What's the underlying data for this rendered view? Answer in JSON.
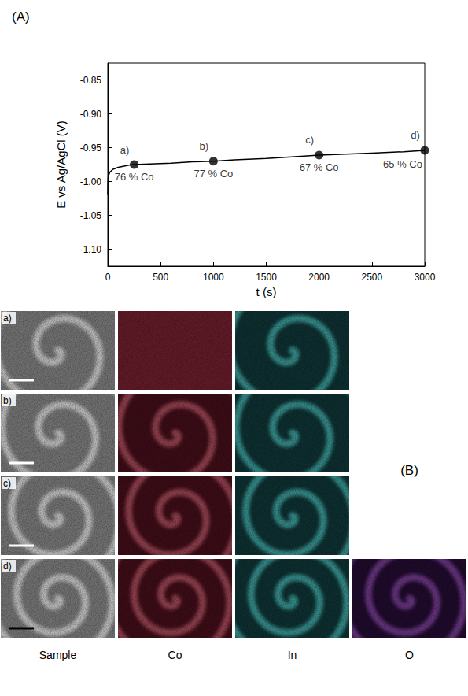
{
  "chart_data": {
    "type": "line",
    "panel": "(A)",
    "x_label": "t (s)",
    "y_label": "E vs Ag/AgCl (V)",
    "x": [
      0,
      2,
      5,
      10,
      20,
      50,
      100,
      200,
      250,
      400,
      600,
      800,
      1000,
      1200,
      1500,
      1800,
      2000,
      2200,
      2500,
      2800,
      3000
    ],
    "values": [
      -1.02,
      -1.0,
      -0.993,
      -0.99,
      -0.986,
      -0.982,
      -0.979,
      -0.976,
      -0.975,
      -0.974,
      -0.973,
      -0.971,
      -0.97,
      -0.968,
      -0.966,
      -0.963,
      -0.961,
      -0.96,
      -0.958,
      -0.956,
      -0.954
    ],
    "color": "#000000",
    "xlim": [
      0,
      3000
    ],
    "xticks": [
      0,
      500,
      1000,
      1500,
      2000,
      2500,
      3000
    ],
    "ylim": [
      -1.125,
      -0.825
    ],
    "yticks": [
      {
        "value": -1.1,
        "label": "-1.10"
      },
      -1.05,
      {
        "value": -1.0,
        "label": "-1.00"
      },
      -0.95,
      {
        "value": -0.9,
        "label": "-0.90"
      },
      -0.85
    ],
    "grid": false,
    "annotations": [
      {
        "x": 250,
        "y": -0.975,
        "marker": "a)",
        "text": "76 % Co"
      },
      {
        "x": 1000,
        "y": -0.97,
        "marker": "b)",
        "text": "77 % Co"
      },
      {
        "x": 2000,
        "y": -0.961,
        "marker": "c)",
        "text": "67 % Co"
      },
      {
        "x": 3000,
        "y": -0.954,
        "marker": "d)",
        "text": "65 % Co"
      }
    ]
  },
  "panel_b": {
    "label": "(B)",
    "columns": [
      "Sample",
      "Co",
      "In",
      "O"
    ],
    "rows": [
      {
        "label": "a)",
        "maps": [
          "Sample",
          "Co",
          "In"
        ]
      },
      {
        "label": "b)",
        "maps": [
          "Sample",
          "Co",
          "In"
        ]
      },
      {
        "label": "c)",
        "maps": [
          "Sample",
          "Co",
          "In"
        ]
      },
      {
        "label": "d)",
        "maps": [
          "Sample",
          "Co",
          "In",
          "O"
        ]
      }
    ]
  }
}
